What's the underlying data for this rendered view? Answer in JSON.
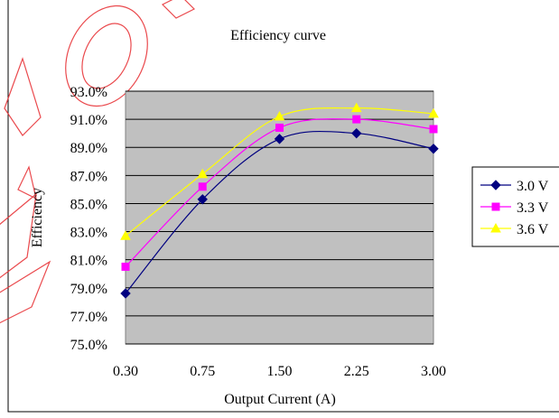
{
  "chart_data": {
    "type": "line",
    "title": "Efficiency curve",
    "xlabel": "Output Current (A)",
    "ylabel": "Efficiency",
    "categories": [
      "0.30",
      "0.75",
      "1.50",
      "2.25",
      "3.00"
    ],
    "ylim": [
      75.0,
      93.0
    ],
    "yticks": [
      "75.0%",
      "77.0%",
      "79.0%",
      "81.0%",
      "83.0%",
      "85.0%",
      "87.0%",
      "89.0%",
      "91.0%",
      "93.0%"
    ],
    "grid": true,
    "legend_position": "right",
    "plot_background": "#c0c0c0",
    "series": [
      {
        "name": "3.0 V",
        "values": [
          78.6,
          85.3,
          89.6,
          90.0,
          88.9
        ],
        "color": "#000080",
        "marker": "diamond"
      },
      {
        "name": "3.3 V",
        "values": [
          80.5,
          86.2,
          90.4,
          91.0,
          90.3
        ],
        "color": "#ff00ff",
        "marker": "square"
      },
      {
        "name": "3.6 V",
        "values": [
          82.7,
          87.1,
          91.2,
          91.8,
          91.4
        ],
        "color": "#ffff00",
        "marker": "triangle"
      }
    ]
  },
  "watermark": {
    "text": "CONFIDENTIAL",
    "color": "#e8363a"
  }
}
